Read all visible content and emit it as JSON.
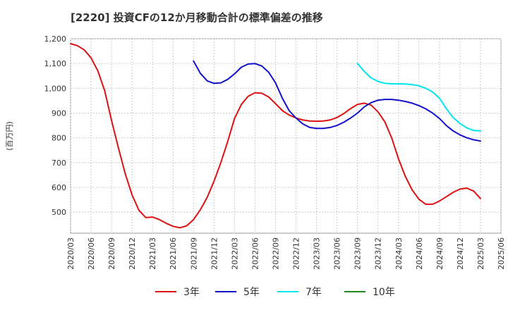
{
  "chart_data": {
    "type": "line",
    "title": "[2220]  投資CFの12か月移動合計の標準偏差の推移",
    "ylabel": "(百万円)",
    "xlabel": "",
    "ylim": [
      415,
      1200
    ],
    "yticks": [
      500,
      600,
      700,
      800,
      900,
      1000,
      1100,
      1200
    ],
    "ytick_labels": [
      "500",
      "600",
      "700",
      "800",
      "900",
      "1,000",
      "1,100",
      "1,200"
    ],
    "xlim": [
      "2020-03",
      "2025-06"
    ],
    "xtick_labels": [
      "2020/03",
      "2020/06",
      "2020/09",
      "2020/12",
      "2021/03",
      "2021/06",
      "2021/09",
      "2021/12",
      "2022/03",
      "2022/06",
      "2022/09",
      "2022/12",
      "2023/03",
      "2023/06",
      "2023/09",
      "2023/12",
      "2024/03",
      "2024/06",
      "2024/09",
      "2024/12",
      "2025/03",
      "2025/06"
    ],
    "grid": true,
    "legend_position": "bottom",
    "series": [
      {
        "name": "3年",
        "color": "#dd1111",
        "x": [
          "2020-03",
          "2020-04",
          "2020-05",
          "2020-06",
          "2020-07",
          "2020-08",
          "2020-09",
          "2020-10",
          "2020-11",
          "2020-12",
          "2021-01",
          "2021-02",
          "2021-03",
          "2021-04",
          "2021-05",
          "2021-06",
          "2021-07",
          "2021-08",
          "2021-09",
          "2021-10",
          "2021-11",
          "2021-12",
          "2022-01",
          "2022-02",
          "2022-03",
          "2022-04",
          "2022-05",
          "2022-06",
          "2022-07",
          "2022-08",
          "2022-09",
          "2022-10",
          "2022-11",
          "2022-12",
          "2023-01",
          "2023-02",
          "2023-03",
          "2023-04",
          "2023-05",
          "2023-06",
          "2023-07",
          "2023-08",
          "2023-09",
          "2023-10",
          "2023-11",
          "2023-12",
          "2024-01",
          "2024-02",
          "2024-03",
          "2024-04",
          "2024-05",
          "2024-06",
          "2024-07",
          "2024-08",
          "2024-09",
          "2024-10",
          "2024-11",
          "2024-12",
          "2025-01",
          "2025-02",
          "2025-03"
        ],
        "values": [
          1180,
          1172,
          1155,
          1123,
          1070,
          990,
          870,
          760,
          655,
          570,
          508,
          478,
          480,
          470,
          455,
          443,
          437,
          445,
          470,
          510,
          560,
          625,
          700,
          785,
          878,
          935,
          968,
          982,
          980,
          965,
          938,
          910,
          892,
          880,
          872,
          868,
          867,
          868,
          872,
          882,
          898,
          918,
          935,
          940,
          932,
          905,
          865,
          800,
          715,
          645,
          590,
          552,
          532,
          532,
          545,
          562,
          580,
          593,
          597,
          585,
          555
        ]
      },
      {
        "name": "5年",
        "color": "#1111cc",
        "x": [
          "2021-09",
          "2021-10",
          "2021-11",
          "2021-12",
          "2022-01",
          "2022-02",
          "2022-03",
          "2022-04",
          "2022-05",
          "2022-06",
          "2022-07",
          "2022-08",
          "2022-09",
          "2022-10",
          "2022-11",
          "2022-12",
          "2023-01",
          "2023-02",
          "2023-03",
          "2023-04",
          "2023-05",
          "2023-06",
          "2023-07",
          "2023-08",
          "2023-09",
          "2023-10",
          "2023-11",
          "2023-12",
          "2024-01",
          "2024-02",
          "2024-03",
          "2024-04",
          "2024-05",
          "2024-06",
          "2024-07",
          "2024-08",
          "2024-09",
          "2024-10",
          "2024-11",
          "2024-12",
          "2025-01",
          "2025-02",
          "2025-03"
        ],
        "values": [
          1110,
          1060,
          1030,
          1020,
          1022,
          1036,
          1058,
          1085,
          1098,
          1100,
          1090,
          1065,
          1022,
          960,
          910,
          880,
          856,
          842,
          838,
          838,
          842,
          850,
          863,
          880,
          900,
          925,
          942,
          952,
          955,
          955,
          952,
          947,
          940,
          930,
          917,
          900,
          878,
          850,
          828,
          812,
          800,
          792,
          787
        ]
      },
      {
        "name": "7年",
        "color": "#00e5ee",
        "x": [
          "2023-09",
          "2023-10",
          "2023-11",
          "2023-12",
          "2024-01",
          "2024-02",
          "2024-03",
          "2024-04",
          "2024-05",
          "2024-06",
          "2024-07",
          "2024-08",
          "2024-09",
          "2024-10",
          "2024-11",
          "2024-12",
          "2025-01",
          "2025-02",
          "2025-03"
        ],
        "values": [
          1100,
          1068,
          1042,
          1028,
          1020,
          1018,
          1018,
          1017,
          1015,
          1010,
          1000,
          985,
          960,
          918,
          882,
          858,
          840,
          830,
          828
        ]
      },
      {
        "name": "10年",
        "color": "#22881f",
        "x": [],
        "values": []
      }
    ]
  }
}
